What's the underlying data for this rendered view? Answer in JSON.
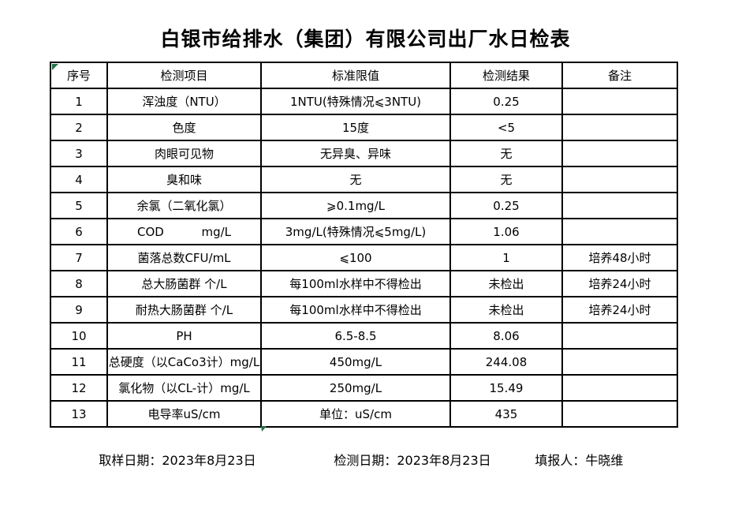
{
  "title": "白银市给排水（集团）有限公司出厂水日检表",
  "colors": {
    "background": "#ffffff",
    "text": "#000000",
    "table_border": "#000000",
    "error_marker_green": "#217346"
  },
  "icons": {
    "top_left_marker": "excel-cell-error-marker",
    "bottom_marker": "excel-cell-error-marker"
  },
  "table": {
    "headers": [
      "序号",
      "检测项目",
      "标准限值",
      "检测结果",
      "备注"
    ],
    "rows": [
      {
        "no": "1",
        "item": "浑浊度（NTU）",
        "standard": "1NTU(特殊情况⩽3NTU)",
        "result": "0.25",
        "remark": ""
      },
      {
        "no": "2",
        "item": "色度",
        "standard": "15度",
        "result": "<5",
        "remark": ""
      },
      {
        "no": "3",
        "item": "肉眼可见物",
        "standard": "无异臭、异味",
        "result": "无",
        "remark": ""
      },
      {
        "no": "4",
        "item": "臭和味",
        "standard": "无",
        "result": "无",
        "remark": ""
      },
      {
        "no": "5",
        "item": "余氯（二氧化氯）",
        "standard": "⩾0.1mg/L",
        "result": "0.25",
        "remark": ""
      },
      {
        "no": "6",
        "item": "COD          mg/L",
        "standard": "3mg/L(特殊情况⩽5mg/L)",
        "result": "1.06",
        "remark": ""
      },
      {
        "no": "7",
        "item": "菌落总数CFU/mL",
        "standard": "⩽100",
        "result": "1",
        "remark": "培养48小时"
      },
      {
        "no": "8",
        "item": "总大肠菌群 个/L",
        "standard": "每100ml水样中不得检出",
        "result": "未检出",
        "remark": "培养24小时"
      },
      {
        "no": "9",
        "item": "耐热大肠菌群 个/L",
        "standard": "每100ml水样中不得检出",
        "result": "未检出",
        "remark": "培养24小时"
      },
      {
        "no": "10",
        "item": "PH",
        "standard": "6.5-8.5",
        "result": "8.06",
        "remark": ""
      },
      {
        "no": "11",
        "item": "总硬度（以CaCo3计）mg/L",
        "standard": "450mg/L",
        "result": "244.08",
        "remark": ""
      },
      {
        "no": "12",
        "item": "氯化物（以CL-计）mg/L",
        "standard": "250mg/L",
        "result": "15.49",
        "remark": ""
      },
      {
        "no": "13",
        "item": "电导率uS/cm",
        "standard": "单位：uS/cm",
        "result": "435",
        "remark": ""
      }
    ]
  },
  "footer": {
    "sampling": {
      "label": "取样日期：",
      "date": "2023年8月23日"
    },
    "testing": {
      "label": "检测日期：",
      "date": "2023年8月23日"
    },
    "reporter": {
      "label": "填报人：",
      "name": "牛晓维"
    }
  }
}
